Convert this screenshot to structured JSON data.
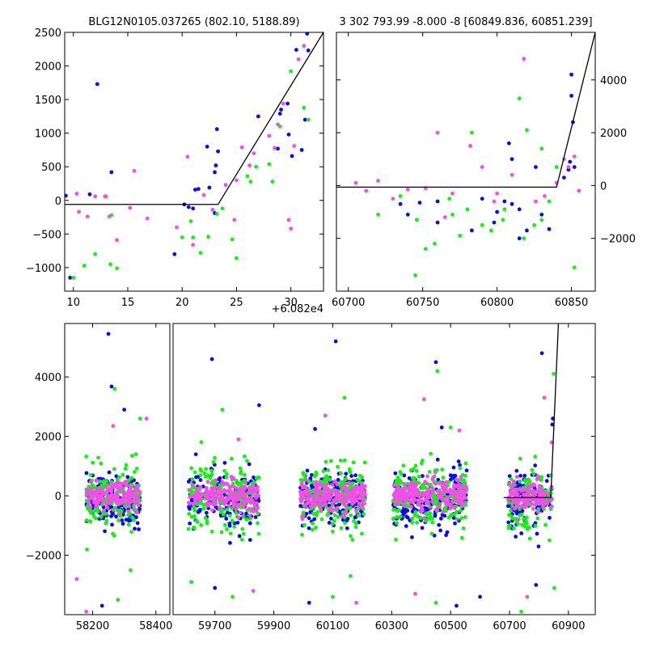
{
  "colors": {
    "blue": "#0a0af0",
    "green": "#14f014",
    "magenta": "#f050e6",
    "line": "#000000"
  },
  "chart_data": [
    {
      "id": "top-left",
      "type": "scatter",
      "title": "BLG12N0105.037265 (802.10, 5188.89)",
      "xlim": [
        9.2,
        33.0
      ],
      "ylim": [
        -1350,
        2500
      ],
      "xticks": [
        10,
        15,
        20,
        25,
        30
      ],
      "yticks": [
        -1000,
        -500,
        0,
        500,
        1000,
        1500,
        2000,
        2500
      ],
      "offset_label": "+6.082e4",
      "model": [
        [
          9.2,
          -60
        ],
        [
          23.3,
          -60
        ],
        [
          33.0,
          2500
        ]
      ],
      "series": [
        {
          "name": "blue",
          "points": [
            [
              9.3,
              70
            ],
            [
              9.7,
              -1150
            ],
            [
              12.2,
              1730
            ],
            [
              13.5,
              420
            ],
            [
              11.5,
              90
            ],
            [
              19.3,
              -800
            ],
            [
              20.2,
              -60
            ],
            [
              20.6,
              -100
            ],
            [
              21.0,
              -120
            ],
            [
              21.2,
              160
            ],
            [
              21.5,
              170
            ],
            [
              22.3,
              800
            ],
            [
              22.5,
              190
            ],
            [
              23.0,
              420
            ],
            [
              23.1,
              520
            ],
            [
              23.2,
              1060
            ],
            [
              23.3,
              730
            ],
            [
              23.0,
              -190
            ],
            [
              27.0,
              1250
            ],
            [
              28.8,
              770
            ],
            [
              29.0,
              1290
            ],
            [
              29.1,
              1350
            ],
            [
              29.7,
              1440
            ],
            [
              29.8,
              980
            ],
            [
              30.1,
              660
            ],
            [
              30.5,
              2240
            ],
            [
              31.0,
              750
            ],
            [
              31.3,
              1200
            ],
            [
              31.5,
              2480
            ],
            [
              31.6,
              2230
            ]
          ]
        },
        {
          "name": "green",
          "points": [
            [
              10.0,
              -1150
            ],
            [
              11.0,
              -970
            ],
            [
              12.0,
              -800
            ],
            [
              13.4,
              -950
            ],
            [
              14.0,
              -1010
            ],
            [
              13.5,
              -220
            ],
            [
              20.0,
              -550
            ],
            [
              21.0,
              -550
            ],
            [
              22.4,
              -540
            ],
            [
              23.2,
              -200
            ],
            [
              24.6,
              -580
            ],
            [
              25.0,
              -860
            ],
            [
              26.0,
              360
            ],
            [
              26.3,
              280
            ],
            [
              26.8,
              500
            ],
            [
              28.0,
              540
            ],
            [
              28.3,
              280
            ],
            [
              29.0,
              1100
            ],
            [
              30.0,
              1920
            ],
            [
              31.2,
              1380
            ],
            [
              31.6,
              1200
            ],
            [
              21.7,
              -780
            ],
            [
              20.8,
              -310
            ],
            [
              23.7,
              -120
            ]
          ]
        },
        {
          "name": "magenta",
          "points": [
            [
              10.3,
              100
            ],
            [
              10.5,
              -170
            ],
            [
              11.3,
              -240
            ],
            [
              12.0,
              60
            ],
            [
              13.0,
              60
            ],
            [
              13.3,
              -240
            ],
            [
              14.0,
              -590
            ],
            [
              15.2,
              -110
            ],
            [
              15.6,
              440
            ],
            [
              16.8,
              -270
            ],
            [
              20.5,
              650
            ],
            [
              21.0,
              -660
            ],
            [
              22.0,
              80
            ],
            [
              22.8,
              -140
            ],
            [
              24.0,
              230
            ],
            [
              24.8,
              -290
            ],
            [
              25.0,
              300
            ],
            [
              25.5,
              790
            ],
            [
              26.2,
              520
            ],
            [
              26.6,
              700
            ],
            [
              28.0,
              960
            ],
            [
              28.5,
              780
            ],
            [
              28.8,
              1130
            ],
            [
              29.3,
              1440
            ],
            [
              29.8,
              -290
            ],
            [
              30.0,
              -420
            ],
            [
              30.3,
              810
            ],
            [
              30.7,
              2100
            ],
            [
              31.2,
              2300
            ],
            [
              12.9,
              60
            ],
            [
              19.5,
              -400
            ]
          ]
        }
      ]
    },
    {
      "id": "top-right",
      "type": "scatter",
      "title": "3 302 793.99 -8.000 -8 [60849.836, 60851.239]",
      "xlim": [
        60692,
        60866
      ],
      "ylim": [
        -4000,
        5800
      ],
      "xticks": [
        60700,
        60750,
        60800,
        60850
      ],
      "yticks": [
        -2000,
        0,
        2000,
        4000
      ],
      "model": [
        [
          60692,
          -60
        ],
        [
          60840,
          -60
        ],
        [
          60866,
          5800
        ]
      ],
      "series": [
        {
          "name": "blue",
          "points": [
            [
              60735,
              -700
            ],
            [
              60740,
              -1100
            ],
            [
              60748,
              -650
            ],
            [
              60760,
              -1400
            ],
            [
              60783,
              -1700
            ],
            [
              60798,
              -1400
            ],
            [
              60810,
              -700
            ],
            [
              60815,
              -900
            ],
            [
              60820,
              -1700
            ],
            [
              60830,
              -1100
            ],
            [
              60835,
              -1650
            ],
            [
              60760,
              -600
            ],
            [
              60790,
              -500
            ],
            [
              60800,
              -1000
            ],
            [
              60808,
              1600
            ],
            [
              60810,
              1000
            ],
            [
              60815,
              -2000
            ],
            [
              60845,
              300
            ],
            [
              60848,
              600
            ],
            [
              60849,
              900
            ],
            [
              60850,
              3400
            ],
            [
              60850,
              4200
            ],
            [
              60851,
              2400
            ],
            [
              60852,
              700
            ],
            [
              60826,
              700
            ],
            [
              60805,
              -600
            ]
          ]
        },
        {
          "name": "green",
          "points": [
            [
              60720,
              -1100
            ],
            [
              60735,
              -400
            ],
            [
              60746,
              -1300
            ],
            [
              60752,
              -2400
            ],
            [
              60758,
              -2200
            ],
            [
              60768,
              -500
            ],
            [
              60780,
              -900
            ],
            [
              60790,
              -1500
            ],
            [
              60796,
              -1700
            ],
            [
              60805,
              -900
            ],
            [
              60815,
              3300
            ],
            [
              60818,
              -2000
            ],
            [
              60820,
              2100
            ],
            [
              60825,
              -1500
            ],
            [
              60830,
              -1300
            ],
            [
              60835,
              -600
            ],
            [
              60840,
              700
            ],
            [
              60852,
              -3100
            ],
            [
              60745,
              -3400
            ],
            [
              60770,
              -1100
            ],
            [
              60783,
              2000
            ],
            [
              60804,
              -1300
            ],
            [
              60830,
              1400
            ],
            [
              60775,
              -1900
            ]
          ]
        },
        {
          "name": "magenta",
          "points": [
            [
              60705,
              100
            ],
            [
              60712,
              -200
            ],
            [
              60720,
              180
            ],
            [
              60730,
              -500
            ],
            [
              60740,
              -150
            ],
            [
              60752,
              -100
            ],
            [
              60760,
              2000
            ],
            [
              60770,
              -300
            ],
            [
              60782,
              1500
            ],
            [
              60790,
              700
            ],
            [
              60800,
              -300
            ],
            [
              60810,
              400
            ],
            [
              60818,
              4800
            ],
            [
              60826,
              -600
            ],
            [
              60832,
              -400
            ],
            [
              60840,
              100
            ],
            [
              60845,
              1000
            ],
            [
              60848,
              700
            ],
            [
              60852,
              1100
            ],
            [
              60765,
              -1200
            ],
            [
              60798,
              -600
            ],
            [
              60855,
              -200
            ]
          ]
        }
      ]
    },
    {
      "id": "bottom",
      "type": "scatter",
      "title": "",
      "ylim": [
        -4000,
        5800
      ],
      "yticks": [
        -2000,
        0,
        2000,
        4000
      ],
      "segments": [
        {
          "xlim": [
            58112,
            58444
          ],
          "xticks": [
            58200,
            58400
          ]
        },
        {
          "xlim": [
            59558,
            60991
          ],
          "xticks": [
            59700,
            59900,
            60100,
            60300,
            60500,
            60700,
            60900
          ]
        }
      ],
      "seasons": [
        {
          "center": 58265,
          "halfwidth": 85,
          "sigma": 480,
          "n": 150,
          "outliers": [
            [
              58260,
              3680
            ],
            [
              58270,
              3600
            ],
            [
              58265,
              2350
            ],
            [
              58300,
              2900
            ],
            [
              58350,
              2600
            ],
            [
              58370,
              2600
            ],
            [
              58230,
              -3700
            ],
            [
              58280,
              -3500
            ],
            [
              58180,
              -3900
            ],
            [
              58250,
              5450
            ],
            [
              58320,
              -2500
            ],
            [
              58150,
              -2800
            ]
          ]
        },
        {
          "center": 59730,
          "halfwidth": 120,
          "sigma": 560,
          "n": 170,
          "outliers": [
            [
              59690,
              4600
            ],
            [
              59725,
              2900
            ],
            [
              59780,
              1900
            ],
            [
              59850,
              3050
            ],
            [
              59760,
              -3400
            ],
            [
              59830,
              -3200
            ],
            [
              59700,
              -3100
            ],
            [
              59620,
              -2900
            ]
          ]
        },
        {
          "center": 60100,
          "halfwidth": 110,
          "sigma": 520,
          "n": 180,
          "outliers": [
            [
              60110,
              5200
            ],
            [
              60140,
              3300
            ],
            [
              60075,
              2700
            ],
            [
              60040,
              2250
            ],
            [
              60100,
              -3400
            ],
            [
              60180,
              -3600
            ],
            [
              60020,
              -3600
            ],
            [
              60160,
              -2700
            ]
          ]
        },
        {
          "center": 60430,
          "halfwidth": 125,
          "sigma": 560,
          "n": 190,
          "outliers": [
            [
              60450,
              4500
            ],
            [
              60455,
              4200
            ],
            [
              60410,
              3250
            ],
            [
              60470,
              2300
            ],
            [
              60500,
              2300
            ],
            [
              60530,
              2200
            ],
            [
              60600,
              -3400
            ],
            [
              60450,
              -3600
            ],
            [
              60380,
              -3300
            ],
            [
              60520,
              -3700
            ]
          ]
        },
        {
          "center": 60770,
          "halfwidth": 75,
          "sigma": 520,
          "n": 120,
          "outliers": [
            [
              60810,
              4800
            ],
            [
              60850,
              4100
            ],
            [
              60818,
              3300
            ],
            [
              60845,
              2400
            ],
            [
              60740,
              -3900
            ],
            [
              60760,
              -3400
            ],
            [
              60790,
              -3000
            ],
            [
              60852,
              -3100
            ],
            [
              60843,
              1800
            ],
            [
              60847,
              2600
            ]
          ]
        }
      ],
      "model": [
        [
          60680,
          -60
        ],
        [
          60840,
          -60
        ],
        [
          60866,
          5800
        ]
      ]
    }
  ]
}
